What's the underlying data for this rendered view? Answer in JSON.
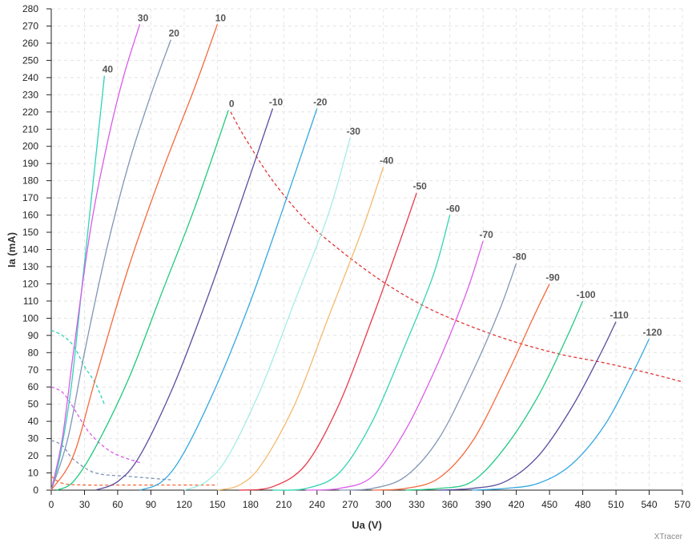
{
  "chart_data": {
    "type": "line",
    "xlabel": "Ua (V)",
    "ylabel": "Ia (mA)",
    "xlim": [
      0,
      570
    ],
    "ylim": [
      0,
      280
    ],
    "x_ticks": [
      0,
      30,
      60,
      90,
      120,
      150,
      180,
      210,
      240,
      270,
      300,
      330,
      360,
      390,
      420,
      450,
      480,
      510,
      540,
      570
    ],
    "y_ticks": [
      0,
      10,
      20,
      30,
      40,
      50,
      60,
      70,
      80,
      90,
      100,
      110,
      120,
      130,
      140,
      150,
      160,
      170,
      180,
      190,
      200,
      210,
      220,
      230,
      240,
      250,
      260,
      270,
      280
    ],
    "grid": true,
    "watermark": "XTracer",
    "series": [
      {
        "name": "40",
        "color": "#2fd3b7",
        "points": [
          [
            0,
            0
          ],
          [
            8,
            20
          ],
          [
            18,
            60
          ],
          [
            28,
            120
          ],
          [
            38,
            180
          ],
          [
            48,
            241
          ]
        ]
      },
      {
        "name": "30",
        "color": "#d95be8",
        "points": [
          [
            0,
            0
          ],
          [
            10,
            30
          ],
          [
            20,
            80
          ],
          [
            35,
            150
          ],
          [
            50,
            200
          ],
          [
            65,
            240
          ],
          [
            80,
            271
          ]
        ]
      },
      {
        "name": "20",
        "color": "#8095b4",
        "points": [
          [
            0,
            0
          ],
          [
            15,
            30
          ],
          [
            30,
            80
          ],
          [
            50,
            140
          ],
          [
            70,
            190
          ],
          [
            90,
            230
          ],
          [
            108,
            262
          ]
        ]
      },
      {
        "name": "10",
        "color": "#f4693c",
        "points": [
          [
            0,
            0
          ],
          [
            20,
            20
          ],
          [
            40,
            65
          ],
          [
            70,
            130
          ],
          [
            100,
            185
          ],
          [
            130,
            235
          ],
          [
            150,
            271
          ]
        ]
      },
      {
        "name": "0",
        "color": "#1ec97a",
        "points": [
          [
            5,
            0
          ],
          [
            20,
            5
          ],
          [
            40,
            25
          ],
          [
            70,
            65
          ],
          [
            100,
            115
          ],
          [
            130,
            165
          ],
          [
            160,
            221
          ]
        ]
      },
      {
        "name": "-10",
        "color": "#5a4c9e",
        "points": [
          [
            40,
            0
          ],
          [
            60,
            5
          ],
          [
            80,
            20
          ],
          [
            110,
            60
          ],
          [
            140,
            110
          ],
          [
            170,
            165
          ],
          [
            200,
            222
          ]
        ]
      },
      {
        "name": "-20",
        "color": "#35a8e0",
        "points": [
          [
            80,
            0
          ],
          [
            100,
            5
          ],
          [
            120,
            22
          ],
          [
            150,
            62
          ],
          [
            180,
            110
          ],
          [
            210,
            165
          ],
          [
            240,
            222
          ]
        ]
      },
      {
        "name": "-30",
        "color": "#a3ece4",
        "points": [
          [
            120,
            0
          ],
          [
            140,
            5
          ],
          [
            160,
            20
          ],
          [
            190,
            60
          ],
          [
            220,
            110
          ],
          [
            250,
            160
          ],
          [
            270,
            205
          ]
        ]
      },
      {
        "name": "-40",
        "color": "#f5b96e",
        "points": [
          [
            150,
            0
          ],
          [
            170,
            3
          ],
          [
            190,
            15
          ],
          [
            220,
            50
          ],
          [
            250,
            100
          ],
          [
            280,
            150
          ],
          [
            300,
            188
          ]
        ]
      },
      {
        "name": "-50",
        "color": "#e8394a",
        "points": [
          [
            170,
            0
          ],
          [
            200,
            2
          ],
          [
            230,
            15
          ],
          [
            260,
            50
          ],
          [
            290,
            100
          ],
          [
            315,
            145
          ],
          [
            330,
            173
          ]
        ]
      },
      {
        "name": "-60",
        "color": "#35d4b4",
        "points": [
          [
            200,
            0
          ],
          [
            230,
            1
          ],
          [
            260,
            10
          ],
          [
            290,
            40
          ],
          [
            320,
            85
          ],
          [
            345,
            125
          ],
          [
            360,
            160
          ]
        ]
      },
      {
        "name": "-70",
        "color": "#dc5ce8",
        "points": [
          [
            230,
            0
          ],
          [
            260,
            1
          ],
          [
            290,
            8
          ],
          [
            320,
            35
          ],
          [
            350,
            75
          ],
          [
            375,
            115
          ],
          [
            390,
            145
          ]
        ]
      },
      {
        "name": "-80",
        "color": "#8296b5",
        "points": [
          [
            260,
            0
          ],
          [
            290,
            1
          ],
          [
            320,
            8
          ],
          [
            350,
            30
          ],
          [
            380,
            68
          ],
          [
            405,
            105
          ],
          [
            420,
            132
          ]
        ]
      },
      {
        "name": "-90",
        "color": "#f4693c",
        "points": [
          [
            290,
            0
          ],
          [
            320,
            1
          ],
          [
            350,
            7
          ],
          [
            380,
            28
          ],
          [
            410,
            65
          ],
          [
            435,
            100
          ],
          [
            450,
            120
          ]
        ]
      },
      {
        "name": "-100",
        "color": "#22c986",
        "points": [
          [
            320,
            0
          ],
          [
            350,
            1
          ],
          [
            380,
            5
          ],
          [
            410,
            25
          ],
          [
            440,
            55
          ],
          [
            465,
            88
          ],
          [
            480,
            110
          ]
        ]
      },
      {
        "name": "-110",
        "color": "#5a4c9e",
        "points": [
          [
            350,
            0
          ],
          [
            380,
            1
          ],
          [
            410,
            5
          ],
          [
            440,
            20
          ],
          [
            470,
            48
          ],
          [
            495,
            78
          ],
          [
            510,
            98
          ]
        ]
      },
      {
        "name": "-120",
        "color": "#35a8e0",
        "points": [
          [
            380,
            0
          ],
          [
            410,
            1
          ],
          [
            440,
            4
          ],
          [
            470,
            15
          ],
          [
            500,
            38
          ],
          [
            525,
            68
          ],
          [
            540,
            88
          ]
        ]
      }
    ],
    "dashed_series": [
      {
        "color": "#e23636",
        "points": [
          [
            162,
            220
          ],
          [
            175,
            205
          ],
          [
            200,
            180
          ],
          [
            230,
            157
          ],
          [
            260,
            140
          ],
          [
            300,
            121
          ],
          [
            340,
            106
          ],
          [
            380,
            95
          ],
          [
            420,
            86
          ],
          [
            460,
            79
          ],
          [
            500,
            74
          ],
          [
            540,
            68
          ],
          [
            570,
            63
          ]
        ]
      },
      {
        "color": "#2fd3b7",
        "points": [
          [
            0,
            93
          ],
          [
            10,
            90
          ],
          [
            20,
            84
          ],
          [
            30,
            72
          ],
          [
            40,
            62
          ],
          [
            48,
            50
          ]
        ]
      },
      {
        "color": "#d95be8",
        "points": [
          [
            0,
            60
          ],
          [
            10,
            57
          ],
          [
            20,
            48
          ],
          [
            35,
            33
          ],
          [
            55,
            22
          ],
          [
            80,
            16
          ]
        ]
      },
      {
        "color": "#8095b4",
        "points": [
          [
            0,
            29
          ],
          [
            10,
            26
          ],
          [
            20,
            18
          ],
          [
            40,
            10
          ],
          [
            70,
            8
          ],
          [
            108,
            6
          ]
        ]
      },
      {
        "color": "#f4693c",
        "points": [
          [
            0,
            8
          ],
          [
            10,
            4
          ],
          [
            30,
            3
          ],
          [
            80,
            3
          ],
          [
            150,
            3
          ]
        ]
      }
    ]
  }
}
